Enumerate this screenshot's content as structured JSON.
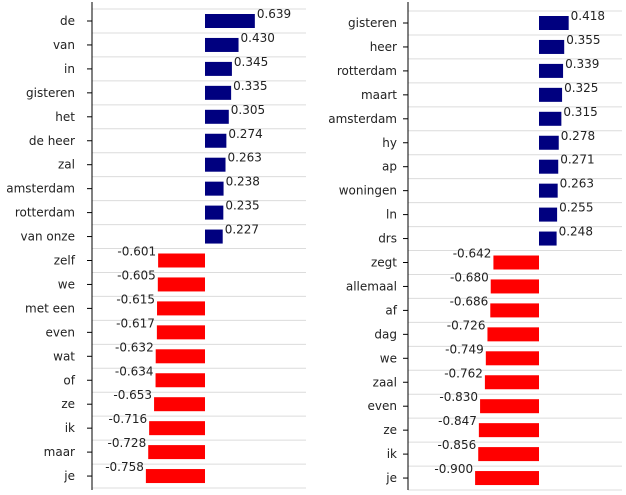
{
  "colors": {
    "positive": "#00007f",
    "negative": "#ff0000",
    "grid": "#dcdcdc",
    "axis": "#000000",
    "text": "#222222"
  },
  "chart_data": [
    {
      "type": "bar",
      "orientation": "horizontal",
      "title": "",
      "xlabel": "",
      "ylabel": "",
      "grid": "horizontal",
      "xlim": [
        -0.79,
        0.79
      ],
      "categories": [
        "de",
        "van",
        "in",
        "gisteren",
        "het",
        "de heer",
        "zal",
        "amsterdam",
        "rotterdam",
        "van onze",
        "zelf",
        "we",
        "met een",
        "even",
        "wat",
        "of",
        "ze",
        "ik",
        "maar",
        "je"
      ],
      "values": [
        0.639,
        0.43,
        0.345,
        0.335,
        0.305,
        0.274,
        0.263,
        0.238,
        0.235,
        0.227,
        -0.601,
        -0.605,
        -0.615,
        -0.617,
        -0.632,
        -0.634,
        -0.653,
        -0.716,
        -0.728,
        -0.758
      ],
      "value_labels": [
        "0.639",
        "0.430",
        "0.345",
        "0.335",
        "0.305",
        "0.274",
        "0.263",
        "0.238",
        "0.235",
        "0.227",
        "-0.601",
        "-0.605",
        "-0.615",
        "-0.617",
        "-0.632",
        "-0.634",
        "-0.653",
        "-0.716",
        "-0.728",
        "-0.758"
      ]
    },
    {
      "type": "bar",
      "orientation": "horizontal",
      "title": "",
      "xlabel": "",
      "ylabel": "",
      "grid": "horizontal",
      "xlim": [
        -0.94,
        0.55
      ],
      "categories": [
        "gisteren",
        "heer",
        "rotterdam",
        "maart",
        "amsterdam",
        "hy",
        "ap",
        "woningen",
        "ln",
        "drs",
        "zegt",
        "allemaal",
        "af",
        "dag",
        "we",
        "zaal",
        "even",
        "ze",
        "ik",
        "je"
      ],
      "values": [
        0.418,
        0.355,
        0.339,
        0.325,
        0.315,
        0.278,
        0.271,
        0.263,
        0.255,
        0.248,
        -0.642,
        -0.68,
        -0.686,
        -0.726,
        -0.749,
        -0.762,
        -0.83,
        -0.847,
        -0.856,
        -0.9
      ],
      "value_labels": [
        "0.418",
        "0.355",
        "0.339",
        "0.325",
        "0.315",
        "0.278",
        "0.271",
        "0.263",
        "0.255",
        "0.248",
        "-0.642",
        "-0.680",
        "-0.686",
        "-0.726",
        "-0.749",
        "-0.762",
        "-0.830",
        "-0.847",
        "-0.856",
        "-0.900"
      ]
    }
  ]
}
